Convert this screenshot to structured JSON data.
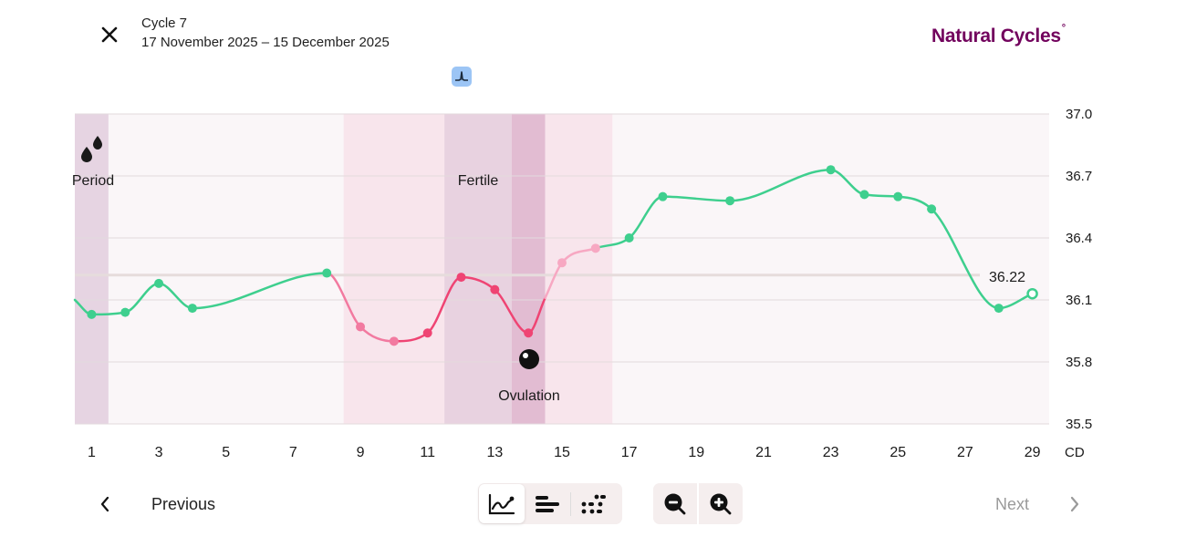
{
  "header": {
    "cycle_title": "Cycle 7",
    "cycle_dates": "17 November 2025 – 15 December 2025",
    "brand": "Natural Cycles",
    "brand_mark": "°",
    "brand_color": "#72035d"
  },
  "nav": {
    "previous_label": "Previous",
    "next_label": "Next"
  },
  "icons": {
    "close": "close-icon",
    "peak": "temperature-peak-icon",
    "graph_view": "line-graph-icon",
    "bars_view": "bar-list-icon",
    "dots_view": "scatter-dots-icon",
    "zoom_out": "zoom-out-icon",
    "zoom_in": "zoom-in-icon",
    "period": "period-drops-icon",
    "ovulation": "ovulation-icon"
  },
  "colors": {
    "green": "#3ecf8e",
    "red": "#ef4473",
    "pink_light": "#f7a8c2",
    "period_band": "#e6d4e2",
    "fertile_light": "#f8e5ec",
    "fertile_dark": "#e8d2e0",
    "ovulation_band": "#e2bcd2",
    "plot_bg": "#faf6f8",
    "cover_line": "#e6dcdc"
  },
  "chart_data": {
    "type": "line",
    "x_start": 0.5,
    "x_end": 29.5,
    "ylim": [
      35.5,
      37.0
    ],
    "y_ticks": [
      "35.5",
      "35.8",
      "36.1",
      "36.4",
      "36.7",
      "37.0"
    ],
    "x_ticks": [
      "1",
      "3",
      "5",
      "7",
      "9",
      "11",
      "13",
      "15",
      "17",
      "19",
      "21",
      "23",
      "25",
      "27",
      "29"
    ],
    "x_unit_label": "CD",
    "cover_line": 36.22,
    "cover_line_label": "36.22",
    "bands": [
      {
        "label": "Period",
        "from": 0.5,
        "to": 1.5,
        "kind": "period"
      },
      {
        "label": "",
        "from": 8.5,
        "to": 11.5,
        "kind": "fertile_light"
      },
      {
        "label": "Fertile",
        "from": 11.5,
        "to": 13.5,
        "kind": "fertile_dark"
      },
      {
        "label": "",
        "from": 13.5,
        "to": 14.5,
        "kind": "ovulation"
      },
      {
        "label": "",
        "from": 14.5,
        "to": 16.5,
        "kind": "fertile_light"
      }
    ],
    "ovulation_label": "Ovulation",
    "ovulation_day": 14,
    "points": [
      {
        "day": 0.5,
        "temp": 36.1,
        "status": "green",
        "hidden": true
      },
      {
        "day": 1,
        "temp": 36.03,
        "status": "green"
      },
      {
        "day": 2,
        "temp": 36.04,
        "status": "green"
      },
      {
        "day": 3,
        "temp": 36.18,
        "status": "green"
      },
      {
        "day": 4,
        "temp": 36.06,
        "status": "green"
      },
      {
        "day": 8,
        "temp": 36.23,
        "status": "green"
      },
      {
        "day": 9,
        "temp": 35.97,
        "status": "pink"
      },
      {
        "day": 10,
        "temp": 35.9,
        "status": "pink"
      },
      {
        "day": 11,
        "temp": 35.94,
        "status": "red"
      },
      {
        "day": 12,
        "temp": 36.21,
        "status": "red"
      },
      {
        "day": 13,
        "temp": 36.15,
        "status": "red"
      },
      {
        "day": 14,
        "temp": 35.94,
        "status": "red"
      },
      {
        "day": 14.5,
        "temp": 36.11,
        "status": "red",
        "hidden": true
      },
      {
        "day": 15,
        "temp": 36.28,
        "status": "pink_light"
      },
      {
        "day": 16,
        "temp": 36.35,
        "status": "pink_light"
      },
      {
        "day": 17,
        "temp": 36.4,
        "status": "green"
      },
      {
        "day": 18,
        "temp": 36.6,
        "status": "green"
      },
      {
        "day": 20,
        "temp": 36.58,
        "status": "green"
      },
      {
        "day": 23,
        "temp": 36.73,
        "status": "green"
      },
      {
        "day": 24,
        "temp": 36.61,
        "status": "green"
      },
      {
        "day": 25,
        "temp": 36.6,
        "status": "green"
      },
      {
        "day": 26,
        "temp": 36.54,
        "status": "green"
      },
      {
        "day": 28,
        "temp": 36.06,
        "status": "green"
      },
      {
        "day": 29,
        "temp": 36.13,
        "status": "green",
        "open": true
      }
    ]
  }
}
